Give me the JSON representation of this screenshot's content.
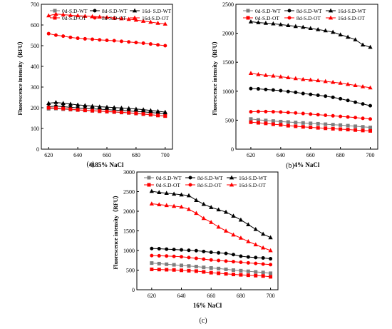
{
  "chart_data": [
    {
      "type": "line",
      "panel_label": "(a)",
      "xlabel": "0.85% NaCl",
      "ylabel": "Fluorescence intensity（RFU）",
      "xlim": [
        615,
        705
      ],
      "ylim": [
        0,
        700
      ],
      "xticks": [
        620,
        640,
        660,
        680,
        700
      ],
      "yticks": [
        0,
        100,
        200,
        300,
        400,
        500,
        600,
        700
      ],
      "x": [
        620,
        625,
        630,
        635,
        640,
        645,
        650,
        655,
        660,
        665,
        670,
        675,
        680,
        685,
        690,
        695,
        700
      ],
      "legend_columns": 3,
      "series": [
        {
          "name": "0d-S.D-WT",
          "color": "#7f7f7f",
          "marker": "square",
          "filled": true,
          "values": [
            195,
            196,
            193,
            191,
            189,
            187,
            185,
            183,
            181,
            179,
            177,
            175,
            172,
            169,
            166,
            163,
            160
          ]
        },
        {
          "name": "8d-S.D-WT",
          "color": "#000000",
          "marker": "circle",
          "filled": true,
          "values": [
            205,
            208,
            205,
            202,
            199,
            197,
            195,
            193,
            191,
            189,
            187,
            185,
            182,
            180,
            177,
            174,
            170
          ]
        },
        {
          "name": "16d- S.D-WT",
          "color": "#000000",
          "marker": "triangle",
          "filled": true,
          "values": [
            222,
            226,
            222,
            218,
            214,
            211,
            208,
            205,
            203,
            201,
            199,
            197,
            194,
            191,
            187,
            183,
            179
          ]
        },
        {
          "name": "0d-S.D-OT",
          "color": "#ff0000",
          "marker": "square",
          "filled": true,
          "values": [
            200,
            199,
            196,
            193,
            190,
            188,
            186,
            184,
            182,
            180,
            178,
            176,
            173,
            170,
            167,
            163,
            160
          ]
        },
        {
          "name": "8d-S.D-OT",
          "color": "#ff0000",
          "marker": "circle",
          "filled": true,
          "values": [
            558,
            551,
            546,
            540,
            536,
            533,
            531,
            528,
            526,
            524,
            521,
            518,
            515,
            512,
            508,
            504,
            500
          ]
        },
        {
          "name": "16d-S.D-OT",
          "color": "#ff0000",
          "marker": "triangle",
          "filled": true,
          "values": [
            645,
            653,
            650,
            647,
            645,
            643,
            641,
            639,
            637,
            634,
            631,
            628,
            624,
            619,
            614,
            609,
            605
          ]
        }
      ]
    },
    {
      "type": "line",
      "panel_label": "(b)",
      "xlabel": "4% NaCl",
      "ylabel": "Fluorescence intensity（RFU）",
      "xlim": [
        610,
        705
      ],
      "ylim": [
        0,
        2500
      ],
      "xticks": [
        620,
        640,
        660,
        680,
        700
      ],
      "yticks": [
        0,
        500,
        1000,
        1500,
        2000,
        2500
      ],
      "x": [
        620,
        625,
        630,
        635,
        640,
        645,
        650,
        655,
        660,
        665,
        670,
        675,
        680,
        685,
        690,
        695,
        700
      ],
      "legend_columns": 3,
      "series": [
        {
          "name": "0d-S.D-WT",
          "color": "#7f7f7f",
          "marker": "square",
          "filled": true,
          "values": [
            520,
            505,
            495,
            485,
            475,
            468,
            460,
            452,
            445,
            438,
            430,
            422,
            415,
            405,
            395,
            385,
            375
          ]
        },
        {
          "name": "8d-S.D-WT",
          "color": "#000000",
          "marker": "circle",
          "filled": true,
          "values": [
            1045,
            1040,
            1030,
            1020,
            1010,
            995,
            980,
            960,
            945,
            930,
            915,
            895,
            870,
            840,
            810,
            780,
            750
          ]
        },
        {
          "name": "16d-S.D-WT",
          "color": "#000000",
          "marker": "triangle",
          "filled": true,
          "values": [
            2200,
            2185,
            2175,
            2165,
            2150,
            2135,
            2120,
            2105,
            2085,
            2065,
            2045,
            2020,
            1975,
            1935,
            1890,
            1800,
            1760
          ]
        },
        {
          "name": "0d-S.D-OT",
          "color": "#ff0000",
          "marker": "square",
          "filled": true,
          "values": [
            465,
            455,
            445,
            430,
            420,
            405,
            395,
            385,
            375,
            368,
            360,
            352,
            345,
            338,
            330,
            322,
            315
          ]
        },
        {
          "name": "8d-S.D-OT",
          "color": "#ff0000",
          "marker": "circle",
          "filled": true,
          "values": [
            645,
            650,
            648,
            645,
            640,
            632,
            625,
            615,
            605,
            595,
            585,
            575,
            565,
            555,
            545,
            532,
            520
          ]
        },
        {
          "name": "16d-S.D-OT",
          "color": "#ff0000",
          "marker": "triangle",
          "filled": true,
          "values": [
            1310,
            1290,
            1275,
            1265,
            1250,
            1235,
            1220,
            1205,
            1195,
            1185,
            1170,
            1155,
            1140,
            1120,
            1100,
            1080,
            1060
          ]
        }
      ]
    },
    {
      "type": "line",
      "panel_label": "(c)",
      "xlabel": "16% NaCl",
      "ylabel": "Fluorescence intensity（RFU）",
      "xlim": [
        610,
        705
      ],
      "ylim": [
        0,
        3000
      ],
      "xticks": [
        620,
        640,
        660,
        680,
        700
      ],
      "yticks": [
        0,
        500,
        1000,
        1500,
        2000,
        2500,
        3000
      ],
      "x": [
        620,
        625,
        630,
        635,
        640,
        645,
        650,
        655,
        660,
        665,
        670,
        675,
        680,
        685,
        690,
        695,
        700
      ],
      "legend_columns": 3,
      "series": [
        {
          "name": "0d-S.D-WT",
          "color": "#7f7f7f",
          "marker": "square",
          "filled": true,
          "values": [
            680,
            665,
            650,
            635,
            620,
            605,
            590,
            570,
            555,
            540,
            520,
            500,
            485,
            470,
            455,
            440,
            420
          ]
        },
        {
          "name": "8d-S.D-WT",
          "color": "#000000",
          "marker": "circle",
          "filled": true,
          "values": [
            1050,
            1045,
            1035,
            1025,
            1015,
            1005,
            995,
            975,
            955,
            940,
            925,
            895,
            855,
            835,
            820,
            810,
            790
          ]
        },
        {
          "name": "16d-S.D-WT",
          "color": "#000000",
          "marker": "triangle",
          "filled": true,
          "values": [
            2510,
            2480,
            2460,
            2440,
            2420,
            2400,
            2280,
            2180,
            2100,
            2040,
            1980,
            1880,
            1780,
            1660,
            1540,
            1420,
            1330
          ]
        },
        {
          "name": "0d-S.D-OT",
          "color": "#ff0000",
          "marker": "square",
          "filled": true,
          "values": [
            520,
            515,
            510,
            505,
            495,
            485,
            475,
            455,
            435,
            420,
            405,
            390,
            380,
            370,
            360,
            350,
            330
          ]
        },
        {
          "name": "8d-S.D-OT",
          "color": "#ff0000",
          "marker": "circle",
          "filled": true,
          "values": [
            870,
            865,
            860,
            850,
            840,
            820,
            800,
            780,
            760,
            745,
            730,
            715,
            700,
            685,
            670,
            655,
            640
          ]
        },
        {
          "name": "16d-S.D-OT",
          "color": "#ff0000",
          "marker": "triangle",
          "filled": true,
          "values": [
            2190,
            2170,
            2150,
            2130,
            2110,
            2050,
            1950,
            1820,
            1720,
            1600,
            1500,
            1400,
            1320,
            1230,
            1150,
            1070,
            1000
          ]
        }
      ]
    }
  ]
}
